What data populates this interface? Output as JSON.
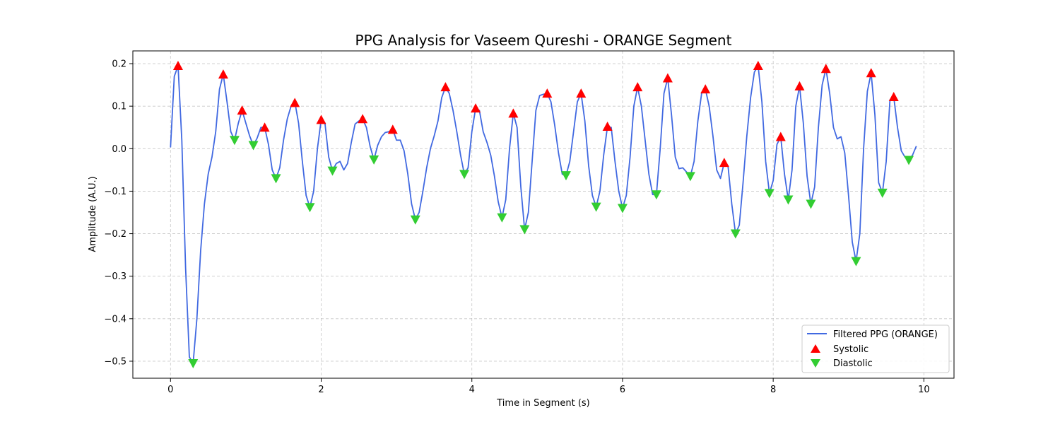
{
  "chart_data": {
    "type": "line",
    "title": "PPG Analysis for Vaseem Qureshi - ORANGE Segment",
    "xlabel": "Time in Segment (s)",
    "ylabel": "Amplitude (A.U.)",
    "xlim": [
      -0.5,
      10.4
    ],
    "ylim": [
      -0.54,
      0.23
    ],
    "x_ticks": [
      0,
      2,
      4,
      6,
      8,
      10
    ],
    "x_tick_labels": [
      "0",
      "2",
      "4",
      "6",
      "8",
      "10"
    ],
    "y_ticks": [
      -0.5,
      -0.4,
      -0.3,
      -0.2,
      -0.1,
      0.0,
      0.1,
      0.2
    ],
    "y_tick_labels": [
      "−0.5",
      "−0.4",
      "−0.3",
      "−0.2",
      "−0.1",
      "0.0",
      "0.1",
      "0.2"
    ],
    "grid": true,
    "legend_position": "lower-right",
    "legend": [
      {
        "label": "Filtered PPG (ORANGE)",
        "kind": "line",
        "color": "#4169e1"
      },
      {
        "label": "Systolic",
        "kind": "triangle-up",
        "color": "#ff0000"
      },
      {
        "label": "Diastolic",
        "kind": "triangle-down",
        "color": "#32cd32"
      }
    ],
    "series": [
      {
        "name": "Filtered PPG (ORANGE)",
        "color": "#4169e1",
        "points": [
          [
            0.0,
            0.003
          ],
          [
            0.05,
            0.17
          ],
          [
            0.1,
            0.195
          ],
          [
            0.15,
            0.02
          ],
          [
            0.2,
            -0.28
          ],
          [
            0.25,
            -0.49
          ],
          [
            0.3,
            -0.505
          ],
          [
            0.35,
            -0.4
          ],
          [
            0.4,
            -0.24
          ],
          [
            0.45,
            -0.13
          ],
          [
            0.5,
            -0.06
          ],
          [
            0.55,
            -0.02
          ],
          [
            0.6,
            0.04
          ],
          [
            0.65,
            0.14
          ],
          [
            0.7,
            0.175
          ],
          [
            0.75,
            0.11
          ],
          [
            0.8,
            0.04
          ],
          [
            0.85,
            0.02
          ],
          [
            0.9,
            0.06
          ],
          [
            0.95,
            0.09
          ],
          [
            1.0,
            0.06
          ],
          [
            1.05,
            0.03
          ],
          [
            1.1,
            0.008
          ],
          [
            1.15,
            0.025
          ],
          [
            1.2,
            0.05
          ],
          [
            1.25,
            0.05
          ],
          [
            1.3,
            0.01
          ],
          [
            1.35,
            -0.05
          ],
          [
            1.4,
            -0.07
          ],
          [
            1.45,
            -0.045
          ],
          [
            1.5,
            0.02
          ],
          [
            1.55,
            0.07
          ],
          [
            1.6,
            0.1
          ],
          [
            1.65,
            0.11
          ],
          [
            1.7,
            0.06
          ],
          [
            1.75,
            -0.03
          ],
          [
            1.8,
            -0.11
          ],
          [
            1.85,
            -0.138
          ],
          [
            1.9,
            -0.1
          ],
          [
            1.95,
            0.0
          ],
          [
            2.0,
            0.068
          ],
          [
            2.05,
            0.06
          ],
          [
            2.1,
            -0.02
          ],
          [
            2.15,
            -0.052
          ],
          [
            2.2,
            -0.035
          ],
          [
            2.25,
            -0.03
          ],
          [
            2.3,
            -0.05
          ],
          [
            2.35,
            -0.035
          ],
          [
            2.4,
            0.015
          ],
          [
            2.45,
            0.058
          ],
          [
            2.5,
            0.065
          ],
          [
            2.55,
            0.07
          ],
          [
            2.6,
            0.05
          ],
          [
            2.65,
            0.005
          ],
          [
            2.7,
            -0.026
          ],
          [
            2.75,
            0.008
          ],
          [
            2.8,
            0.028
          ],
          [
            2.85,
            0.038
          ],
          [
            2.9,
            0.04
          ],
          [
            2.95,
            0.045
          ],
          [
            3.0,
            0.02
          ],
          [
            3.05,
            0.02
          ],
          [
            3.1,
            -0.005
          ],
          [
            3.15,
            -0.06
          ],
          [
            3.2,
            -0.13
          ],
          [
            3.25,
            -0.167
          ],
          [
            3.3,
            -0.15
          ],
          [
            3.35,
            -0.1
          ],
          [
            3.4,
            -0.045
          ],
          [
            3.45,
            0.0
          ],
          [
            3.5,
            0.03
          ],
          [
            3.55,
            0.065
          ],
          [
            3.6,
            0.12
          ],
          [
            3.65,
            0.145
          ],
          [
            3.7,
            0.13
          ],
          [
            3.75,
            0.09
          ],
          [
            3.8,
            0.04
          ],
          [
            3.85,
            -0.015
          ],
          [
            3.9,
            -0.06
          ],
          [
            3.95,
            -0.045
          ],
          [
            4.0,
            0.04
          ],
          [
            4.05,
            0.095
          ],
          [
            4.1,
            0.09
          ],
          [
            4.15,
            0.04
          ],
          [
            4.2,
            0.015
          ],
          [
            4.25,
            -0.015
          ],
          [
            4.3,
            -0.065
          ],
          [
            4.35,
            -0.125
          ],
          [
            4.4,
            -0.162
          ],
          [
            4.45,
            -0.12
          ],
          [
            4.5,
            0.0
          ],
          [
            4.55,
            0.083
          ],
          [
            4.6,
            0.05
          ],
          [
            4.65,
            -0.09
          ],
          [
            4.7,
            -0.19
          ],
          [
            4.75,
            -0.15
          ],
          [
            4.8,
            -0.03
          ],
          [
            4.85,
            0.09
          ],
          [
            4.9,
            0.125
          ],
          [
            4.95,
            0.128
          ],
          [
            5.0,
            0.13
          ],
          [
            5.05,
            0.11
          ],
          [
            5.1,
            0.055
          ],
          [
            5.15,
            -0.01
          ],
          [
            5.2,
            -0.06
          ],
          [
            5.25,
            -0.063
          ],
          [
            5.3,
            -0.03
          ],
          [
            5.35,
            0.04
          ],
          [
            5.4,
            0.11
          ],
          [
            5.45,
            0.13
          ],
          [
            5.5,
            0.065
          ],
          [
            5.55,
            -0.04
          ],
          [
            5.6,
            -0.11
          ],
          [
            5.65,
            -0.137
          ],
          [
            5.7,
            -0.1
          ],
          [
            5.75,
            -0.015
          ],
          [
            5.8,
            0.052
          ],
          [
            5.85,
            0.05
          ],
          [
            5.9,
            -0.03
          ],
          [
            5.95,
            -0.1
          ],
          [
            6.0,
            -0.14
          ],
          [
            6.05,
            -0.11
          ],
          [
            6.1,
            -0.02
          ],
          [
            6.15,
            0.1
          ],
          [
            6.2,
            0.145
          ],
          [
            6.25,
            0.1
          ],
          [
            6.3,
            0.02
          ],
          [
            6.35,
            -0.06
          ],
          [
            6.4,
            -0.108
          ],
          [
            6.45,
            -0.108
          ],
          [
            6.5,
            0.0
          ],
          [
            6.55,
            0.13
          ],
          [
            6.6,
            0.166
          ],
          [
            6.65,
            0.08
          ],
          [
            6.7,
            -0.02
          ],
          [
            6.75,
            -0.047
          ],
          [
            6.8,
            -0.045
          ],
          [
            6.85,
            -0.055
          ],
          [
            6.9,
            -0.065
          ],
          [
            6.95,
            -0.03
          ],
          [
            7.0,
            0.065
          ],
          [
            7.05,
            0.13
          ],
          [
            7.1,
            0.14
          ],
          [
            7.15,
            0.1
          ],
          [
            7.2,
            0.03
          ],
          [
            7.25,
            -0.05
          ],
          [
            7.3,
            -0.07
          ],
          [
            7.35,
            -0.033
          ],
          [
            7.4,
            -0.04
          ],
          [
            7.45,
            -0.13
          ],
          [
            7.5,
            -0.2
          ],
          [
            7.55,
            -0.18
          ],
          [
            7.6,
            -0.08
          ],
          [
            7.65,
            0.03
          ],
          [
            7.7,
            0.12
          ],
          [
            7.75,
            0.18
          ],
          [
            7.8,
            0.195
          ],
          [
            7.85,
            0.11
          ],
          [
            7.9,
            -0.03
          ],
          [
            7.95,
            -0.105
          ],
          [
            8.0,
            -0.075
          ],
          [
            8.05,
            0.01
          ],
          [
            8.1,
            0.028
          ],
          [
            8.15,
            -0.06
          ],
          [
            8.2,
            -0.12
          ],
          [
            8.25,
            -0.05
          ],
          [
            8.3,
            0.1
          ],
          [
            8.35,
            0.147
          ],
          [
            8.4,
            0.06
          ],
          [
            8.45,
            -0.065
          ],
          [
            8.5,
            -0.13
          ],
          [
            8.55,
            -0.09
          ],
          [
            8.6,
            0.05
          ],
          [
            8.65,
            0.15
          ],
          [
            8.7,
            0.188
          ],
          [
            8.75,
            0.13
          ],
          [
            8.8,
            0.05
          ],
          [
            8.85,
            0.023
          ],
          [
            8.9,
            0.028
          ],
          [
            8.95,
            -0.01
          ],
          [
            9.0,
            -0.11
          ],
          [
            9.05,
            -0.22
          ],
          [
            9.1,
            -0.265
          ],
          [
            9.15,
            -0.2
          ],
          [
            9.2,
            0.0
          ],
          [
            9.25,
            0.135
          ],
          [
            9.3,
            0.178
          ],
          [
            9.35,
            0.08
          ],
          [
            9.4,
            -0.08
          ],
          [
            9.45,
            -0.104
          ],
          [
            9.5,
            -0.03
          ],
          [
            9.55,
            0.115
          ],
          [
            9.6,
            0.122
          ],
          [
            9.65,
            0.05
          ],
          [
            9.7,
            -0.005
          ],
          [
            9.75,
            -0.02
          ],
          [
            9.8,
            -0.027
          ],
          [
            9.85,
            -0.015
          ],
          [
            9.9,
            0.006
          ]
        ]
      }
    ],
    "systolic": {
      "name": "Systolic",
      "color": "#ff0000",
      "points": [
        [
          0.1,
          0.195
        ],
        [
          0.7,
          0.175
        ],
        [
          0.95,
          0.09
        ],
        [
          1.25,
          0.05
        ],
        [
          1.65,
          0.108
        ],
        [
          2.0,
          0.068
        ],
        [
          2.55,
          0.07
        ],
        [
          2.95,
          0.045
        ],
        [
          3.65,
          0.145
        ],
        [
          4.05,
          0.095
        ],
        [
          4.55,
          0.083
        ],
        [
          5.0,
          0.13
        ],
        [
          5.45,
          0.13
        ],
        [
          5.8,
          0.052
        ],
        [
          6.2,
          0.145
        ],
        [
          6.6,
          0.166
        ],
        [
          7.1,
          0.14
        ],
        [
          7.35,
          -0.033
        ],
        [
          7.8,
          0.195
        ],
        [
          8.1,
          0.028
        ],
        [
          8.35,
          0.147
        ],
        [
          8.7,
          0.188
        ],
        [
          9.3,
          0.178
        ],
        [
          9.6,
          0.122
        ]
      ]
    },
    "diastolic": {
      "name": "Diastolic",
      "color": "#32cd32",
      "points": [
        [
          0.3,
          -0.505
        ],
        [
          0.85,
          0.02
        ],
        [
          1.1,
          0.008
        ],
        [
          1.4,
          -0.07
        ],
        [
          1.85,
          -0.138
        ],
        [
          2.15,
          -0.052
        ],
        [
          2.7,
          -0.026
        ],
        [
          3.25,
          -0.167
        ],
        [
          3.9,
          -0.06
        ],
        [
          4.4,
          -0.162
        ],
        [
          4.7,
          -0.19
        ],
        [
          5.25,
          -0.063
        ],
        [
          5.65,
          -0.137
        ],
        [
          6.0,
          -0.14
        ],
        [
          6.45,
          -0.108
        ],
        [
          6.9,
          -0.065
        ],
        [
          7.5,
          -0.2
        ],
        [
          7.95,
          -0.105
        ],
        [
          8.2,
          -0.12
        ],
        [
          8.5,
          -0.13
        ],
        [
          9.1,
          -0.265
        ],
        [
          9.45,
          -0.104
        ],
        [
          9.8,
          -0.027
        ]
      ]
    }
  }
}
